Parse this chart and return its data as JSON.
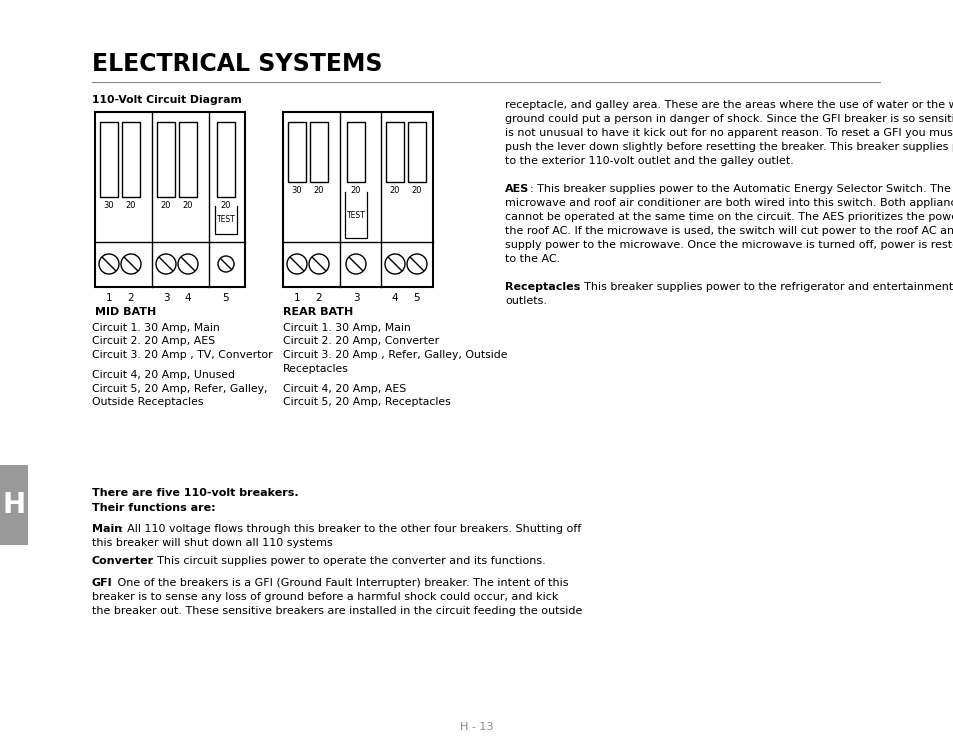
{
  "title": "ELECTRICAL SYSTEMS",
  "subtitle": "110-Volt Circuit Diagram",
  "mid_bath_label": "MID BATH",
  "rear_bath_label": "REAR BATH",
  "mid_circuits": [
    "Circuit 1. 30 Amp, Main",
    "Circuit 2. 20 Amp, AES",
    "Circuit 3. 20 Amp , TV, Convertor",
    "",
    "Circuit 4, 20 Amp, Unused",
    "Circuit 5, 20 Amp, Refer, Galley,",
    "Outside Receptacles"
  ],
  "rear_circuits": [
    "Circuit 1. 30 Amp, Main",
    "Circuit 2. 20 Amp, Converter",
    "Circuit 3. 20 Amp , Refer, Galley, Outside",
    "Receptacles",
    "",
    "Circuit 4, 20 Amp, AES",
    "Circuit 5, 20 Amp, Receptacles"
  ],
  "bold_line1": "There are five 110-volt breakers.",
  "bold_line2": "Their functions are:",
  "right_col_text1": "receptacle, and galley area. These are the areas where the use of water or the wet\nground could put a person in danger of shock. Since the GFI breaker is so sensitive, it\nis not unusual to have it kick out for no apparent reason. To reset a GFI you must first\npush the lever down slightly before resetting the breaker. This breaker supplies power\nto the exterior 110-volt outlet and the galley outlet.",
  "right_aes_bold": "AES",
  "right_aes_text": ": This breaker supplies power to the Automatic Energy Selector Switch. The\nmicrowave and roof air conditioner are both wired into this switch. Both appliances\ncannot be operated at the same time on the circuit. The AES prioritizes the power to\nthe roof AC. If the microwave is used, the switch will cut power to the roof AC and\nsupply power to the microwave. Once the microwave is turned off, power is restored\nto the AC.",
  "right_rec_bold": "Receptacles",
  "right_rec_text": ": This breaker supplies power to the refrigerator and entertainment center\noutlets.",
  "page_num": "H - 13",
  "bg_color": "#ffffff",
  "text_color": "#000000",
  "gray_color": "#888888",
  "tab_color": "#999999"
}
